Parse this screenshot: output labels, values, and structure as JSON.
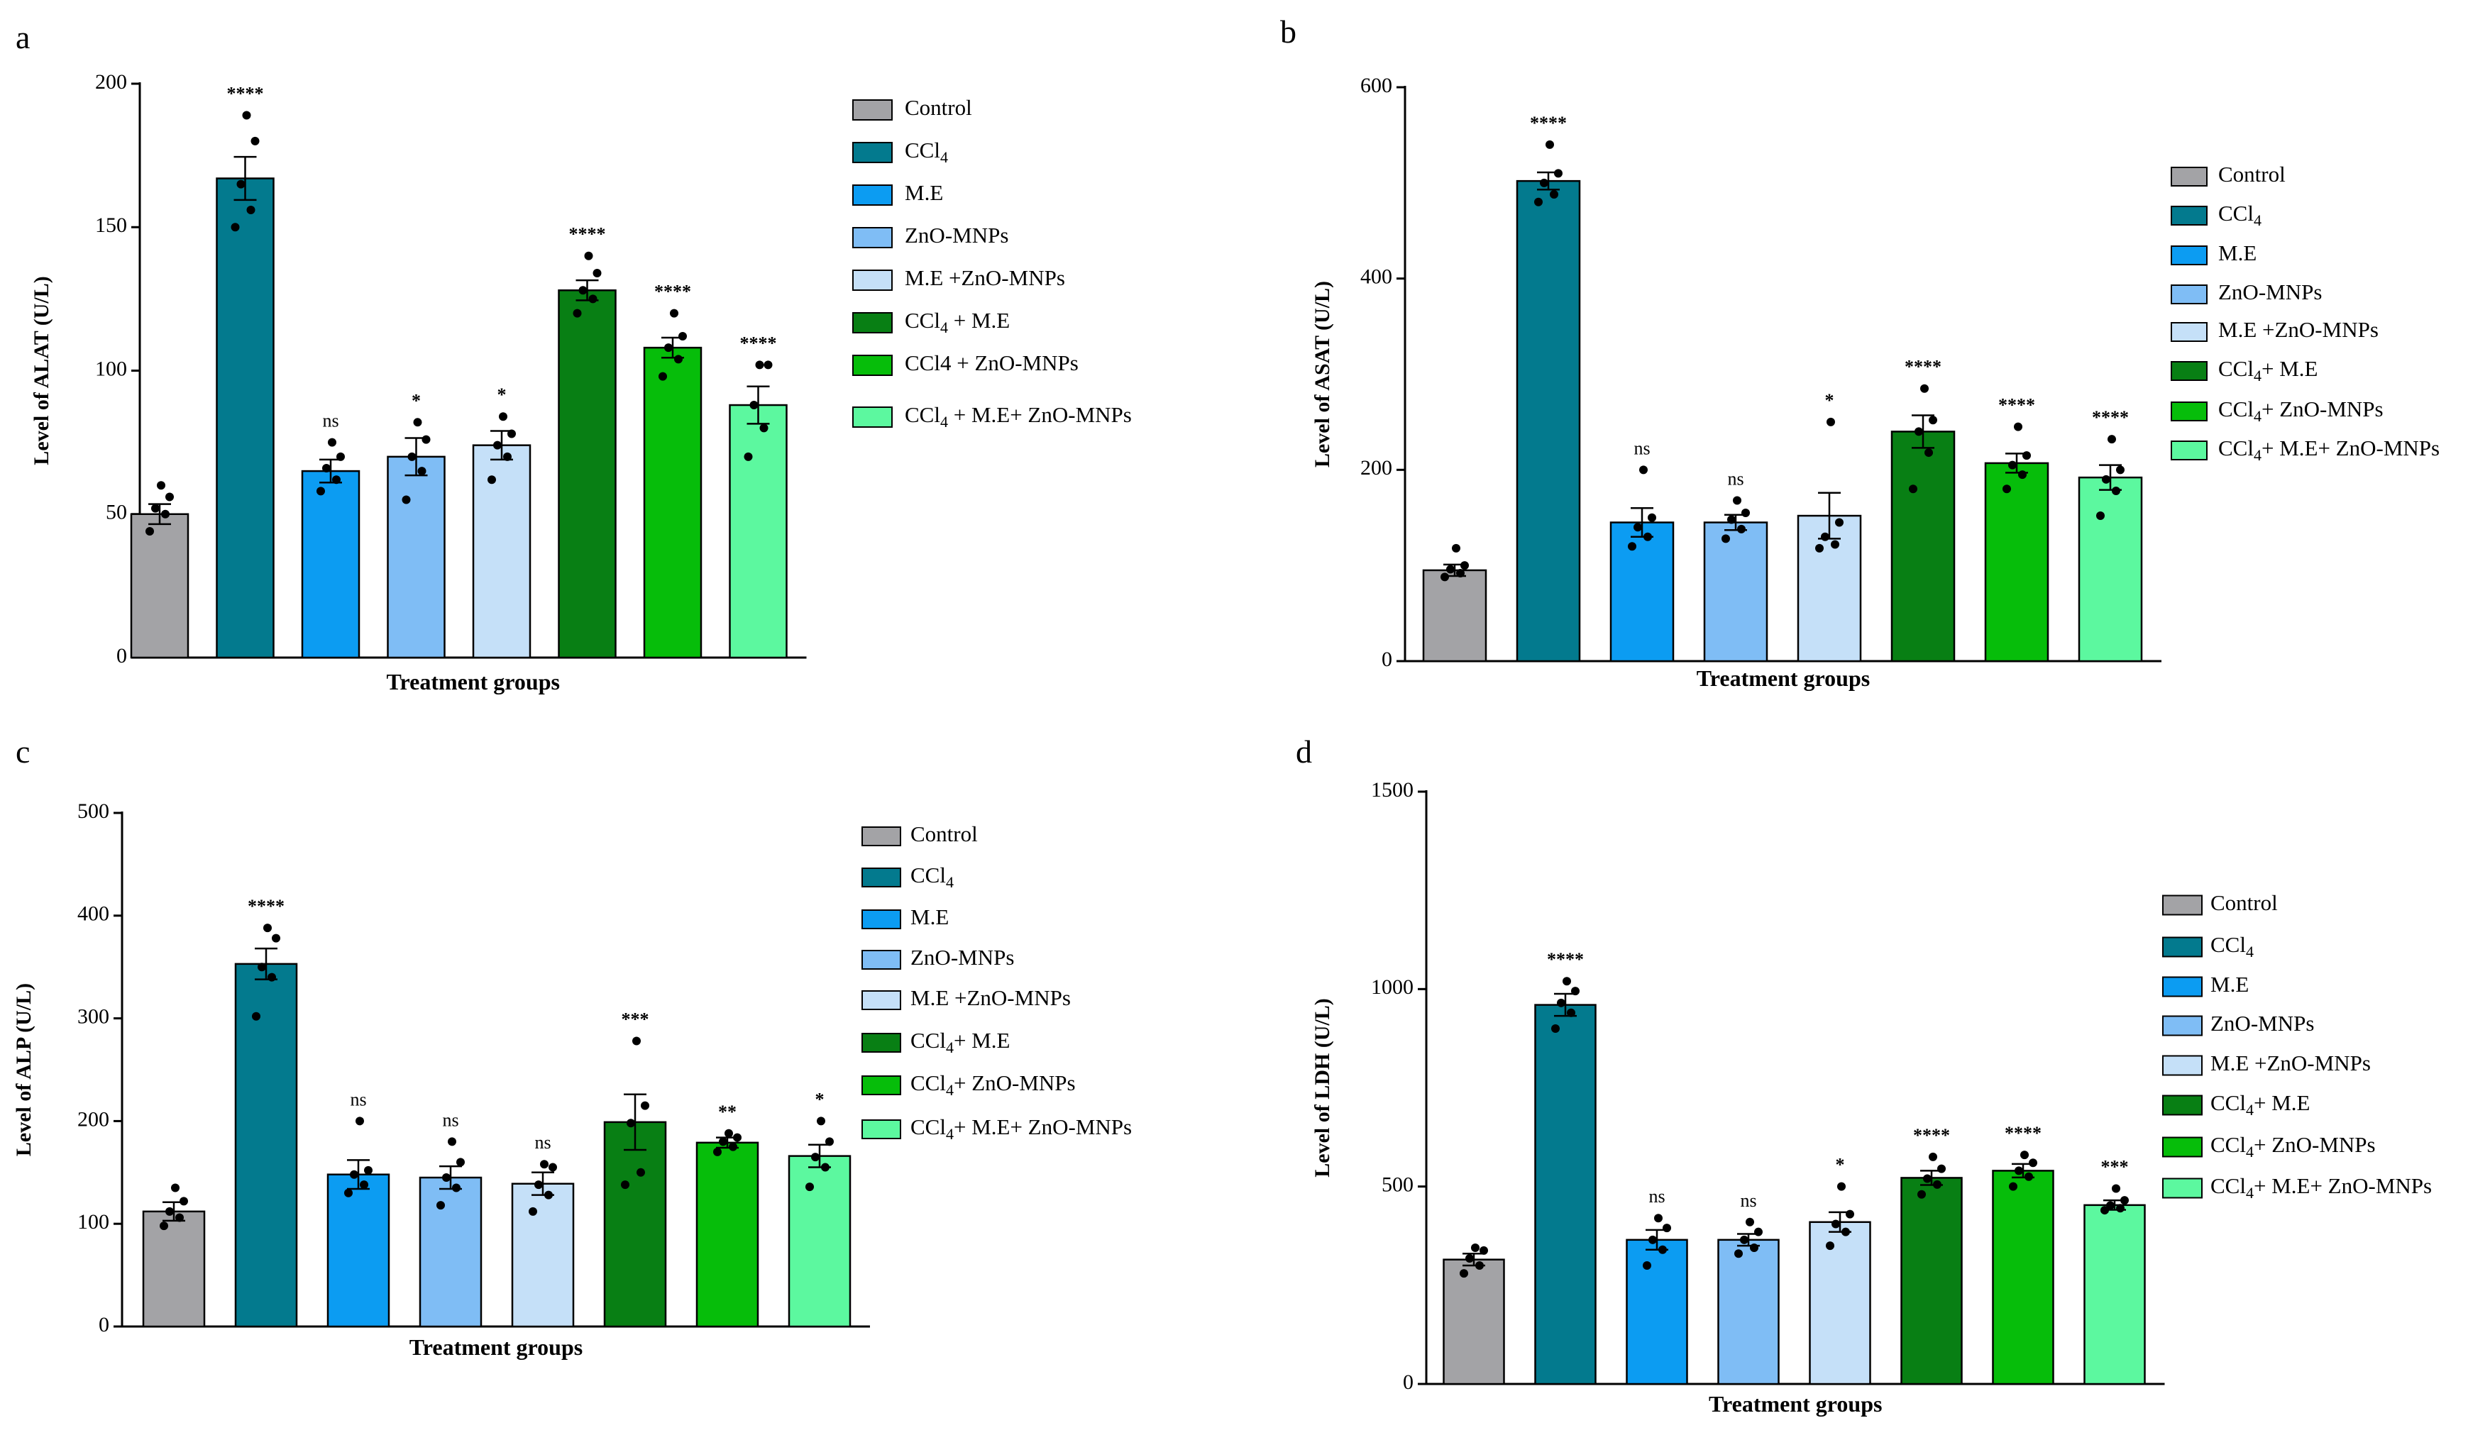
{
  "groups": [
    "Control",
    "CCl4",
    "M.E",
    "ZnO-MNPs",
    "M.E +ZnO-MNPs",
    "CCl4 + M.E",
    "CCl4 + ZnO-MNPs",
    "CCl4 + M.E+ ZnO-MNPs"
  ],
  "colors": [
    "#a3a3a6",
    "#037a8e",
    "#0c9cf2",
    "#7fbdf5",
    "#c5e0f8",
    "#087f14",
    "#06bd0a",
    "#5cf89f"
  ],
  "chart_data": [
    {
      "panel": "a",
      "type": "bar",
      "ylabel": "Level of ALAT (U/L)",
      "xlabel": "Treatment groups",
      "ylim": [
        0,
        200
      ],
      "yticks": [
        0,
        50,
        100,
        150,
        200
      ],
      "means": [
        50,
        167,
        65,
        70,
        74,
        128,
        108,
        88
      ],
      "sem": [
        3.5,
        7.5,
        4,
        6.5,
        5,
        3.5,
        3.5,
        6.5
      ],
      "points": [
        [
          44,
          50,
          52,
          56,
          60
        ],
        [
          150,
          156,
          165,
          180,
          189
        ],
        [
          58,
          62,
          66,
          70,
          75
        ],
        [
          55,
          65,
          70,
          76,
          82
        ],
        [
          62,
          70,
          74,
          78,
          84
        ],
        [
          120,
          125,
          128,
          134,
          140
        ],
        [
          98,
          104,
          108,
          112,
          120
        ],
        [
          70,
          80,
          88,
          102,
          102
        ]
      ],
      "significance": [
        "",
        "****",
        "ns",
        "*",
        "*",
        "****",
        "****",
        "****"
      ],
      "legend": [
        {
          "text": "Control"
        },
        {
          "text": "CCl",
          "sub": "4",
          "rest": ""
        },
        {
          "text": "M.E"
        },
        {
          "text": "ZnO-MNPs"
        },
        {
          "text": "M.E +ZnO-MNPs"
        },
        {
          "text": "CCl",
          "sub": "4",
          "rest": " + M.E"
        },
        {
          "text": "CCl4 + ZnO-MNPs"
        },
        {
          "text": "CCl",
          "sub": "4",
          "rest": " + M.E+ ZnO-MNPs"
        }
      ]
    },
    {
      "panel": "b",
      "type": "bar",
      "ylabel": "Level of ASAT (U/L)",
      "xlabel": "Treatment groups",
      "ylim": [
        0,
        600
      ],
      "yticks": [
        0,
        200,
        400,
        600
      ],
      "means": [
        95,
        502,
        145,
        145,
        152,
        240,
        207,
        192
      ],
      "sem": [
        6,
        9,
        15,
        8,
        24,
        17,
        10,
        13
      ],
      "points": [
        [
          88,
          92,
          96,
          100,
          118
        ],
        [
          480,
          488,
          500,
          510,
          540
        ],
        [
          120,
          130,
          140,
          150,
          200
        ],
        [
          128,
          138,
          148,
          155,
          168
        ],
        [
          118,
          122,
          130,
          145,
          250
        ],
        [
          180,
          218,
          240,
          252,
          285
        ],
        [
          180,
          195,
          205,
          215,
          245
        ],
        [
          152,
          178,
          190,
          200,
          232
        ]
      ],
      "significance": [
        "",
        "****",
        "ns",
        "ns",
        "*",
        "****",
        "****",
        "****"
      ],
      "legend": [
        {
          "text": "Control"
        },
        {
          "text": "CCl",
          "sub": "4",
          "rest": ""
        },
        {
          "text": "M.E"
        },
        {
          "text": "ZnO-MNPs"
        },
        {
          "text": "M.E +ZnO-MNPs"
        },
        {
          "text": "CCl",
          "sub": "4",
          "rest": "+ M.E"
        },
        {
          "text": "CCl",
          "sub": "4",
          "rest": "+ ZnO-MNPs"
        },
        {
          "text": "CCl",
          "sub": "4",
          "rest": "+ M.E+ ZnO-MNPs"
        }
      ]
    },
    {
      "panel": "c",
      "type": "bar",
      "ylabel": "Level of ALP (U/L)",
      "xlabel": "Treatment groups",
      "ylim": [
        0,
        500
      ],
      "yticks": [
        0,
        100,
        200,
        300,
        400,
        500
      ],
      "means": [
        112,
        353,
        148,
        145,
        139,
        199,
        179,
        166
      ],
      "sem": [
        9,
        15,
        14,
        11,
        11,
        27,
        5,
        11
      ],
      "points": [
        [
          98,
          106,
          112,
          122,
          135
        ],
        [
          302,
          340,
          350,
          378,
          388
        ],
        [
          130,
          138,
          148,
          152,
          200
        ],
        [
          118,
          135,
          145,
          160,
          180
        ],
        [
          112,
          128,
          138,
          155,
          158
        ],
        [
          138,
          150,
          198,
          215,
          278
        ],
        [
          170,
          175,
          180,
          184,
          188
        ],
        [
          136,
          155,
          165,
          180,
          200
        ]
      ],
      "significance": [
        "",
        "****",
        "ns",
        "ns",
        "ns",
        "***",
        "**",
        "*"
      ],
      "legend": [
        {
          "text": "Control"
        },
        {
          "text": "CCl",
          "sub": "4",
          "rest": ""
        },
        {
          "text": "M.E"
        },
        {
          "text": "ZnO-MNPs"
        },
        {
          "text": "M.E +ZnO-MNPs"
        },
        {
          "text": "CCl",
          "sub": "4",
          "rest": "+ M.E"
        },
        {
          "text": "CCl",
          "sub": "4",
          "rest": "+ ZnO-MNPs"
        },
        {
          "text": "CCl",
          "sub": "4",
          "rest": "+ M.E+ ZnO-MNPs"
        }
      ]
    },
    {
      "panel": "d",
      "type": "bar",
      "ylabel": "Level of LDH (U/L)",
      "xlabel": "Treatment groups",
      "ylim": [
        0,
        1500
      ],
      "yticks": [
        0,
        500,
        1000,
        1500
      ],
      "means": [
        315,
        960,
        365,
        365,
        410,
        522,
        540,
        453
      ],
      "sem": [
        15,
        28,
        25,
        15,
        25,
        18,
        17,
        12
      ],
      "points": [
        [
          280,
          300,
          318,
          338,
          345
        ],
        [
          900,
          940,
          965,
          995,
          1020
        ],
        [
          300,
          340,
          365,
          395,
          420
        ],
        [
          330,
          345,
          365,
          385,
          410
        ],
        [
          350,
          385,
          405,
          430,
          500
        ],
        [
          480,
          505,
          520,
          545,
          575
        ],
        [
          500,
          525,
          540,
          560,
          580
        ],
        [
          440,
          445,
          452,
          465,
          495
        ]
      ],
      "significance": [
        "",
        "****",
        "ns",
        "ns",
        "*",
        "****",
        "****",
        "***"
      ],
      "legend": [
        {
          "text": "Control"
        },
        {
          "text": "CCl",
          "sub": "4",
          "rest": ""
        },
        {
          "text": "M.E"
        },
        {
          "text": "ZnO-MNPs"
        },
        {
          "text": "M.E +ZnO-MNPs"
        },
        {
          "text": "CCl",
          "sub": "4",
          "rest": "+ M.E"
        },
        {
          "text": "CCl",
          "sub": "4",
          "rest": "+ ZnO-MNPs"
        },
        {
          "text": "CCl",
          "sub": "4",
          "rest": "+ M.E+ ZnO-MNPs"
        }
      ]
    }
  ]
}
